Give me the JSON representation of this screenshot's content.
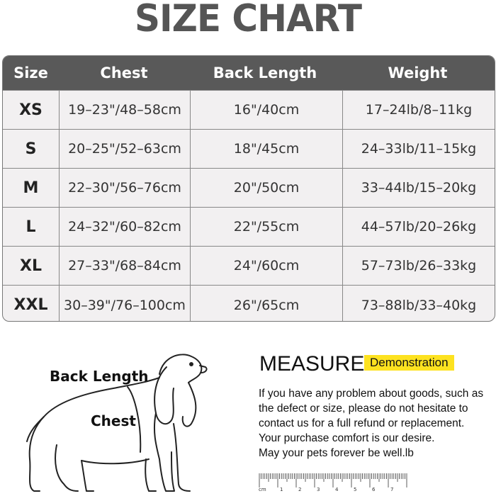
{
  "title": "SIZE CHART",
  "table": {
    "headers": [
      "Size",
      "Chest",
      "Back Length",
      "Weight"
    ],
    "rows": [
      [
        "XS",
        "19–23\"/48–58cm",
        "16\"/40cm",
        "17–24lb/8–11kg"
      ],
      [
        "S",
        "20–25\"/52–63cm",
        "18\"/45cm",
        "24–33lb/11–15kg"
      ],
      [
        "M",
        "22–30\"/56–76cm",
        "20\"/50cm",
        "33–44lb/15–20kg"
      ],
      [
        "L",
        "24–32\"/60–82cm",
        "22\"/55cm",
        "44–57lb/20–26kg"
      ],
      [
        "XL",
        "27–33\"/68–84cm",
        "24\"/60cm",
        "57–73lb/26–33kg"
      ],
      [
        "XXL",
        "30–39\"/76–100cm",
        "26\"/65cm",
        "73–88lb/33–40kg"
      ]
    ]
  },
  "diagram": {
    "back_label": "Back Length",
    "chest_label": "Chest",
    "icon": "dog-outline-icon"
  },
  "measure": {
    "title": "MEASURE",
    "badge": "Demonstration",
    "badge_color": "#fde220",
    "lines": [
      "If you have any problem about goods, such as",
      "the defect or size, please do not hesitate to",
      "contact us for a full refund or replacement.",
      "Your purchase comfort is our desire.",
      "May your pets forever be well.lb"
    ]
  },
  "ruler": {
    "unit": "cm",
    "ticks": [
      "1",
      "2",
      "3",
      "4",
      "5",
      "6",
      "7"
    ]
  }
}
